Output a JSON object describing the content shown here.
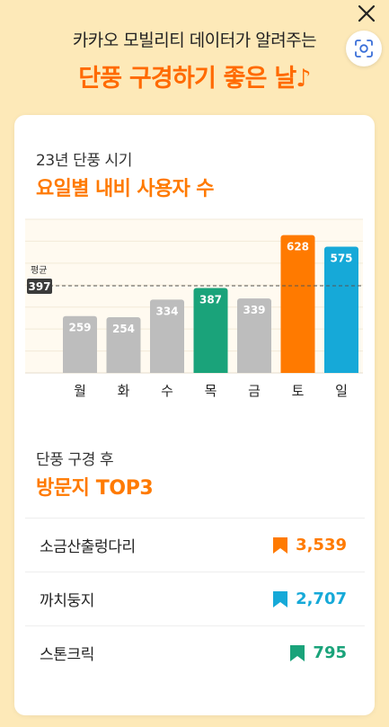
{
  "header": {
    "subtitle": "카카오 모빌리티 데이터가 알려주는",
    "title": "단풍 구경하기 좋은 날♪"
  },
  "icons": {
    "close": "close-icon",
    "scan": "scan-icon",
    "bookmark": "bookmark-icon"
  },
  "section1": {
    "title": "23년 단풍 시기",
    "subtitle": "요일별 내비 사용자 수"
  },
  "chart_data": {
    "type": "bar",
    "categories": [
      "월",
      "화",
      "수",
      "목",
      "금",
      "토",
      "일"
    ],
    "values": [
      259,
      254,
      334,
      387,
      339,
      628,
      575
    ],
    "colors": [
      "#bdbdbd",
      "#bdbdbd",
      "#bdbdbd",
      "#1aa37a",
      "#bdbdbd",
      "#ff7a00",
      "#16a9d8"
    ],
    "average": {
      "label": "평균",
      "value": 397
    },
    "ylim": [
      0,
      700
    ],
    "grid": true
  },
  "section2": {
    "title": "단풍 구경 후",
    "subtitle": "방문지 TOP3"
  },
  "top3": [
    {
      "name": "소금산출렁다리",
      "value": "3,539",
      "color": "#ff7a00"
    },
    {
      "name": "까치둥지",
      "value": "2,707",
      "color": "#16a9d8"
    },
    {
      "name": "스톤크릭",
      "value": "795",
      "color": "#1aa37a"
    }
  ]
}
